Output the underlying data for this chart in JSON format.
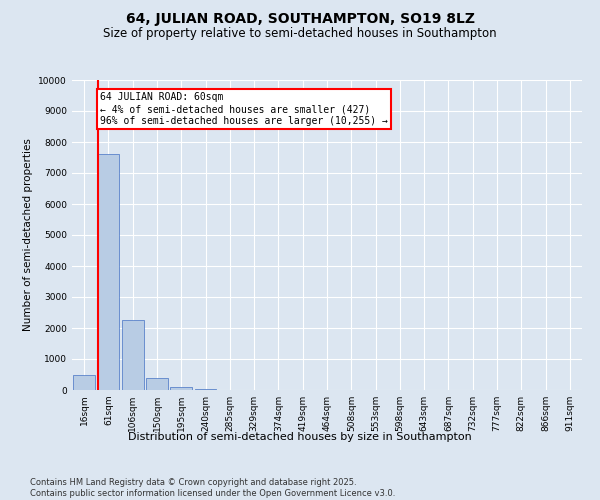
{
  "title": "64, JULIAN ROAD, SOUTHAMPTON, SO19 8LZ",
  "subtitle": "Size of property relative to semi-detached houses in Southampton",
  "xlabel": "Distribution of semi-detached houses by size in Southampton",
  "ylabel": "Number of semi-detached properties",
  "categories": [
    "16sqm",
    "61sqm",
    "106sqm",
    "150sqm",
    "195sqm",
    "240sqm",
    "285sqm",
    "329sqm",
    "374sqm",
    "419sqm",
    "464sqm",
    "508sqm",
    "553sqm",
    "598sqm",
    "643sqm",
    "687sqm",
    "732sqm",
    "777sqm",
    "822sqm",
    "866sqm",
    "911sqm"
  ],
  "values": [
    500,
    7600,
    2250,
    380,
    100,
    20,
    5,
    2,
    1,
    0,
    0,
    0,
    0,
    0,
    0,
    0,
    0,
    0,
    0,
    0,
    0
  ],
  "bar_color": "#b8cce4",
  "bar_edge_color": "#4472c4",
  "highlight_line_color": "#ff0000",
  "highlight_bar_index": 1,
  "annotation_text": "64 JULIAN ROAD: 60sqm\n← 4% of semi-detached houses are smaller (427)\n96% of semi-detached houses are larger (10,255) →",
  "annotation_box_color": "#ff0000",
  "ylim": [
    0,
    10000
  ],
  "yticks": [
    0,
    1000,
    2000,
    3000,
    4000,
    5000,
    6000,
    7000,
    8000,
    9000,
    10000
  ],
  "footer": "Contains HM Land Registry data © Crown copyright and database right 2025.\nContains public sector information licensed under the Open Government Licence v3.0.",
  "bg_color": "#dce6f1",
  "plot_bg_color": "#dce6f1",
  "title_fontsize": 10,
  "subtitle_fontsize": 8.5,
  "tick_fontsize": 6.5,
  "ylabel_fontsize": 7.5,
  "xlabel_fontsize": 8,
  "footer_fontsize": 6,
  "annotation_fontsize": 7
}
